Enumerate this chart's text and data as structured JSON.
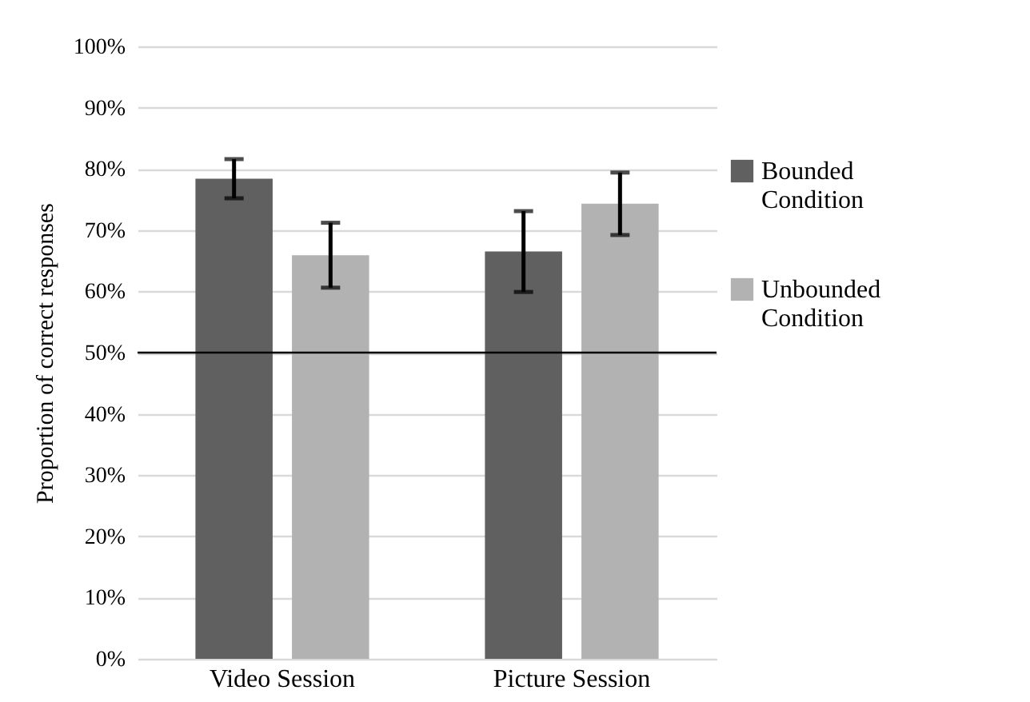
{
  "chart_data": {
    "type": "bar",
    "ylabel": "Proportion of correct responses",
    "categories": [
      "Video Session",
      "Picture Session"
    ],
    "series": [
      {
        "name": "Bounded Condition",
        "color": "#606060",
        "values": [
          78.4,
          66.5
        ],
        "errors": [
          3.2,
          6.6
        ]
      },
      {
        "name": "Unbounded Condition",
        "color": "#b2b2b2",
        "values": [
          65.9,
          74.3
        ],
        "errors": [
          5.3,
          5.1
        ]
      }
    ],
    "ylim": [
      0,
      100
    ],
    "yticks": [
      {
        "value": 0,
        "label": "0%"
      },
      {
        "value": 10,
        "label": "10%"
      },
      {
        "value": 20,
        "label": "20%"
      },
      {
        "value": 30,
        "label": "30%"
      },
      {
        "value": 40,
        "label": "40%"
      },
      {
        "value": 50,
        "label": "50%"
      },
      {
        "value": 60,
        "label": "60%"
      },
      {
        "value": 70,
        "label": "70%"
      },
      {
        "value": 80,
        "label": "80%"
      },
      {
        "value": 90,
        "label": "90%"
      },
      {
        "value": 100,
        "label": "100%"
      }
    ],
    "ref_lines": [
      {
        "axis": "y",
        "value": 50,
        "color": "#000000"
      }
    ],
    "grid": "y",
    "legend": "right"
  }
}
